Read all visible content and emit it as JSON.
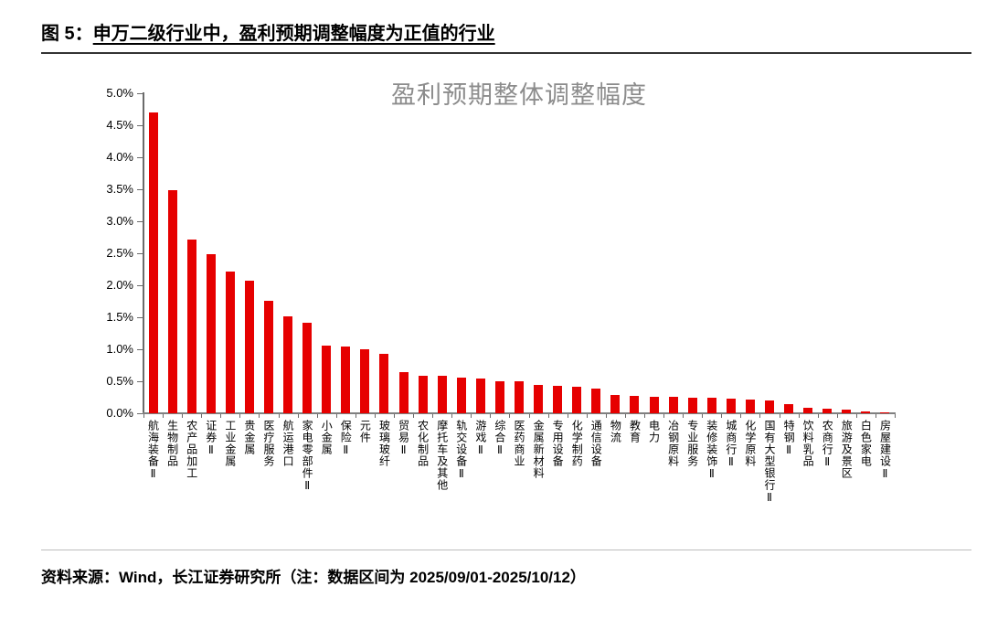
{
  "figure": {
    "caption_label": "图 5：",
    "caption_text": "申万二级行业中，盈利预期调整幅度为正值的行业"
  },
  "chart_data": {
    "type": "bar",
    "title": "盈利预期整体调整幅度",
    "categories": [
      "航海装备Ⅱ",
      "生物制品",
      "农产品加工",
      "证券Ⅱ",
      "工业金属",
      "贵金属",
      "医疗服务",
      "航运港口",
      "家电零部件Ⅱ",
      "小金属",
      "保险Ⅱ",
      "元件",
      "玻璃玻纤",
      "贸易Ⅱ",
      "农化制品",
      "摩托车及其他",
      "轨交设备Ⅱ",
      "游戏Ⅱ",
      "综合Ⅱ",
      "医药商业",
      "金属新材料",
      "专用设备",
      "化学制药",
      "通信设备",
      "物流",
      "教育",
      "电力",
      "冶钢原料",
      "专业服务",
      "装修装饰Ⅱ",
      "城商行Ⅱ",
      "化学原料",
      "国有大型银行Ⅱ",
      "特钢Ⅱ",
      "饮料乳品",
      "农商行Ⅱ",
      "旅游及景区",
      "白色家电",
      "房屋建设Ⅱ"
    ],
    "values": [
      4.7,
      3.48,
      2.71,
      2.48,
      2.22,
      2.07,
      1.76,
      1.51,
      1.41,
      1.06,
      1.04,
      1.0,
      0.93,
      0.64,
      0.59,
      0.58,
      0.56,
      0.54,
      0.5,
      0.5,
      0.45,
      0.43,
      0.42,
      0.39,
      0.29,
      0.27,
      0.26,
      0.26,
      0.25,
      0.24,
      0.23,
      0.21,
      0.2,
      0.14,
      0.09,
      0.07,
      0.06,
      0.03,
      0.02
    ],
    "unit": "%",
    "xlabel": "",
    "ylabel": "",
    "ylim": [
      0,
      5
    ],
    "ytick_step": 0.5,
    "ytick_labels": [
      "0.0%",
      "0.5%",
      "1.0%",
      "1.5%",
      "2.0%",
      "2.5%",
      "3.0%",
      "3.5%",
      "4.0%",
      "4.5%",
      "5.0%"
    ],
    "grid": false,
    "legend": "none",
    "bar_color": "#e60000",
    "title_color": "#8c8c8c"
  },
  "footer": {
    "text": "资料来源：Wind，长江证券研究所（注：数据区间为 2025/09/01-2025/10/12）"
  }
}
